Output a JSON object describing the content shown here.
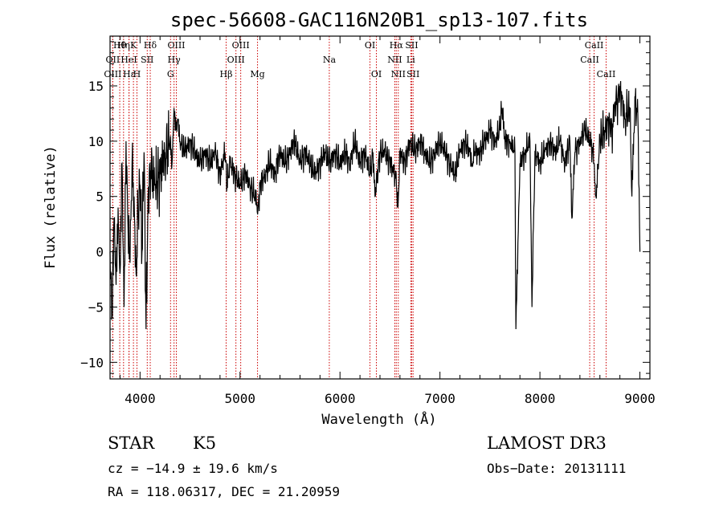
{
  "chart_data": {
    "type": "line",
    "title": "spec-56608-GAC116N20B1_sp13-107.fits",
    "xlabel": "Wavelength (Å)",
    "ylabel": "Flux (relative)",
    "xlim": [
      3700,
      9100
    ],
    "ylim": [
      -11.5,
      19.5
    ],
    "xticks": [
      4000,
      5000,
      6000,
      7000,
      8000,
      9000
    ],
    "yticks": [
      -10,
      -5,
      0,
      5,
      10,
      15
    ],
    "series": [
      {
        "name": "flux",
        "x": [
          3700,
          3720,
          3740,
          3760,
          3780,
          3800,
          3820,
          3840,
          3860,
          3880,
          3900,
          3920,
          3940,
          3960,
          3980,
          4000,
          4020,
          4040,
          4060,
          4080,
          4100,
          4150,
          4200,
          4250,
          4300,
          4320,
          4340,
          4360,
          4380,
          4400,
          4450,
          4500,
          4550,
          4600,
          4650,
          4700,
          4750,
          4800,
          4850,
          4870,
          4900,
          4950,
          5000,
          5050,
          5100,
          5150,
          5180,
          5200,
          5250,
          5300,
          5350,
          5400,
          5450,
          5500,
          5550,
          5600,
          5650,
          5700,
          5750,
          5800,
          5850,
          5900,
          5950,
          6000,
          6050,
          6100,
          6150,
          6200,
          6250,
          6300,
          6330,
          6350,
          6400,
          6450,
          6500,
          6550,
          6565,
          6580,
          6600,
          6650,
          6700,
          6750,
          6800,
          6850,
          6900,
          6950,
          7000,
          7050,
          7100,
          7150,
          7200,
          7250,
          7300,
          7320,
          7350,
          7400,
          7450,
          7500,
          7550,
          7600,
          7620,
          7650,
          7700,
          7750,
          7760,
          7800,
          7850,
          7900,
          7920,
          7950,
          8000,
          8050,
          8100,
          8150,
          8200,
          8250,
          8300,
          8320,
          8350,
          8400,
          8450,
          8500,
          8530,
          8540,
          8560,
          8600,
          8650,
          8700,
          8720,
          8750,
          8780,
          8800,
          8850,
          8900,
          8920,
          8950,
          8980,
          9000
        ],
        "values": [
          0,
          -6,
          3,
          -3,
          4,
          -2,
          8,
          -5,
          10,
          2,
          -1,
          8,
          5,
          -2,
          3,
          6,
          0,
          9,
          -7,
          5,
          8,
          6,
          7,
          9,
          10,
          8,
          13,
          11,
          12,
          10,
          9,
          10,
          9,
          8,
          9,
          8,
          9,
          7,
          9,
          6,
          8,
          7,
          6,
          7,
          6,
          5,
          4,
          6,
          7,
          8,
          7,
          9,
          8,
          9,
          10,
          8,
          9,
          8,
          7,
          8,
          9,
          8,
          9,
          8,
          9,
          8,
          10,
          8,
          9,
          7,
          9,
          5,
          9,
          9,
          8,
          7,
          6,
          4,
          9,
          8,
          10,
          9,
          10,
          9,
          8,
          9,
          10,
          9,
          8,
          7,
          9,
          10,
          9,
          8,
          9,
          9,
          10,
          11,
          10,
          11,
          13,
          10,
          10,
          9,
          -7,
          8,
          9,
          10,
          -5,
          9,
          8,
          9,
          10,
          9,
          10,
          8,
          10,
          3,
          9,
          10,
          11,
          10,
          9,
          8,
          5,
          10,
          11,
          12,
          11,
          13,
          14,
          15,
          12,
          13,
          5,
          14,
          12,
          0
        ]
      }
    ],
    "annotations": [
      {
        "label": "Hθ",
        "x": 3797,
        "row": 0
      },
      {
        "label": "OII",
        "x": 3727,
        "row": 1
      },
      {
        "label": "OIII",
        "x": 3727,
        "row": 2
      },
      {
        "label": "Hη",
        "x": 3835,
        "row": 0
      },
      {
        "label": "HeI",
        "x": 3889,
        "row": 1
      },
      {
        "label": "Hε",
        "x": 3890,
        "row": 2
      },
      {
        "label": "K",
        "x": 3934,
        "row": 0
      },
      {
        "label": "SII",
        "x": 4072,
        "row": 1
      },
      {
        "label": "H",
        "x": 3969,
        "row": 2
      },
      {
        "label": "Hδ",
        "x": 4102,
        "row": 0
      },
      {
        "label": "OIII",
        "x": 4363,
        "row": 0
      },
      {
        "label": "Hγ",
        "x": 4340,
        "row": 1
      },
      {
        "label": "G",
        "x": 4305,
        "row": 2
      },
      {
        "label": "Hβ",
        "x": 4861,
        "row": 2
      },
      {
        "label": "OIII",
        "x": 5007,
        "row": 0
      },
      {
        "label": "OIII",
        "x": 4959,
        "row": 1
      },
      {
        "label": "Mg",
        "x": 5175,
        "row": 2
      },
      {
        "label": "Na",
        "x": 5893,
        "row": 1
      },
      {
        "label": "OI",
        "x": 6300,
        "row": 0
      },
      {
        "label": "OI",
        "x": 6364,
        "row": 2
      },
      {
        "label": "Hα",
        "x": 6563,
        "row": 0
      },
      {
        "label": "NII",
        "x": 6548,
        "row": 1
      },
      {
        "label": "NII",
        "x": 6583,
        "row": 2
      },
      {
        "label": "SII",
        "x": 6717,
        "row": 0
      },
      {
        "label": "Li",
        "x": 6708,
        "row": 1
      },
      {
        "label": "SII",
        "x": 6731,
        "row": 2
      },
      {
        "label": "CaII",
        "x": 8542,
        "row": 0
      },
      {
        "label": "CaII",
        "x": 8498,
        "row": 1
      },
      {
        "label": "CaII",
        "x": 8662,
        "row": 2
      }
    ]
  },
  "footer": {
    "object_class": "STAR",
    "subclass": "K5",
    "survey": "LAMOST DR3",
    "cz": "cz = −14.9 ± 19.6 km/s",
    "obs_date": "Obs−Date: 20131111",
    "coords": "RA = 118.06317, DEC =  21.20959"
  }
}
